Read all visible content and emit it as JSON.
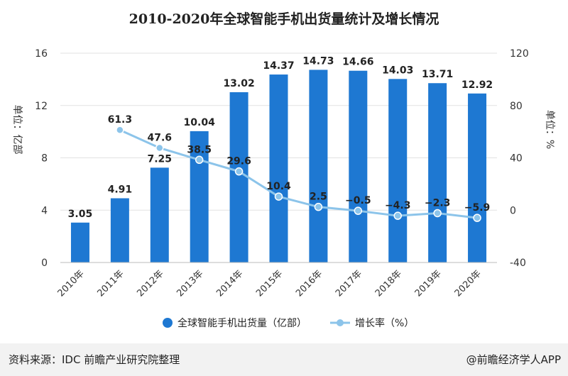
{
  "page": {
    "source": "资料来源：IDC 前瞻产业研究院整理",
    "credit": "@前瞻经济学人APP"
  },
  "chart_data": {
    "type": "bar",
    "title": "2010-2020年全球智能手机出货量统计及增长情况",
    "categories": [
      "2010年",
      "2011年",
      "2012年",
      "2013年",
      "2014年",
      "2015年",
      "2016年",
      "2017年",
      "2018年",
      "2019年",
      "2020年"
    ],
    "series": [
      {
        "name": "全球智能手机出货量（亿部）",
        "type": "bar",
        "axis": "left",
        "values": [
          3.05,
          4.91,
          7.25,
          10.04,
          13.02,
          14.37,
          14.73,
          14.66,
          14.03,
          13.71,
          12.92
        ],
        "labels": [
          "3.05",
          "4.91",
          "7.25",
          "10.04",
          "13.02",
          "14.37",
          "14.73",
          "14.66",
          "14.03",
          "13.71",
          "12.92"
        ],
        "color": "#1e78d2"
      },
      {
        "name": "增长率（%）",
        "type": "line",
        "axis": "right",
        "values": [
          null,
          61.3,
          47.6,
          38.5,
          29.6,
          10.4,
          2.5,
          -0.5,
          -4.3,
          -2.3,
          -5.9
        ],
        "labels": [
          "",
          "61.3",
          "47.6",
          "38.5",
          "29.6",
          "10.4",
          "2.5",
          "−0.5",
          "−4.3",
          "−2.3",
          "−5.9"
        ],
        "color": "#8cc4ea"
      }
    ],
    "ylabel_left": "单位：亿部",
    "ylabel_right": "单位：%",
    "ylim_left": [
      0,
      16
    ],
    "ylim_right": [
      -40,
      120
    ],
    "yticks_left": [
      "0",
      "4",
      "8",
      "12",
      "16"
    ],
    "yticks_right": [
      "-40",
      "0",
      "40",
      "80",
      "120"
    ],
    "legend": {
      "position": "bottom",
      "items": [
        "全球智能手机出货量（亿部）",
        "增长率（%）"
      ]
    }
  }
}
